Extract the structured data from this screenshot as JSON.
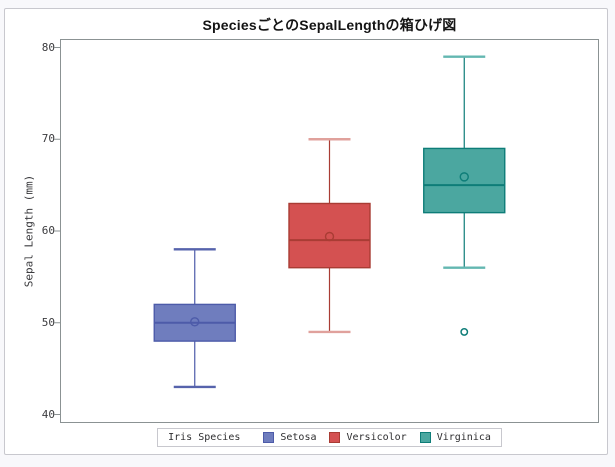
{
  "page": {
    "background_color": "#f8f8fb",
    "figure_border_color": "#c8c8ce"
  },
  "axis": {
    "line_color": "#8b9293",
    "tick_text_color": "#3b3b3e"
  },
  "chart_data": {
    "type": "boxplot",
    "title": "SpeciesごとのSepalLengthの箱ひげ図",
    "xlabel": "",
    "ylabel": "Sepal Length (mm)",
    "ylim": [
      40,
      80
    ],
    "yticks": [
      40,
      50,
      60,
      70,
      80
    ],
    "grid": false,
    "legend": {
      "title": "Iris Species",
      "position": "bottom"
    },
    "categories": [
      "Setosa",
      "Versicolor",
      "Virginica"
    ],
    "series": [
      {
        "name": "Setosa",
        "whisker_low": 43,
        "q1": 48,
        "median": 50,
        "q3": 52,
        "whisker_high": 58,
        "mean": 50.1,
        "outliers": [],
        "colors": {
          "fill": "#6f7dbe",
          "line": "#4d5ba9",
          "cap": "#5663ac"
        }
      },
      {
        "name": "Versicolor",
        "whisker_low": 49,
        "q1": 56,
        "median": 59,
        "q3": 63,
        "whisker_high": 70,
        "mean": 59.4,
        "outliers": [],
        "colors": {
          "fill": "#d45151",
          "line": "#a93c34",
          "cap": "#e0a19c"
        }
      },
      {
        "name": "Virginica",
        "whisker_low": 56,
        "q1": 62,
        "median": 65,
        "q3": 69,
        "whisker_high": 79,
        "mean": 65.9,
        "outliers": [
          49
        ],
        "colors": {
          "fill": "#4ba7a0",
          "line": "#0e7d78",
          "cap": "#63b7b1"
        }
      }
    ]
  }
}
